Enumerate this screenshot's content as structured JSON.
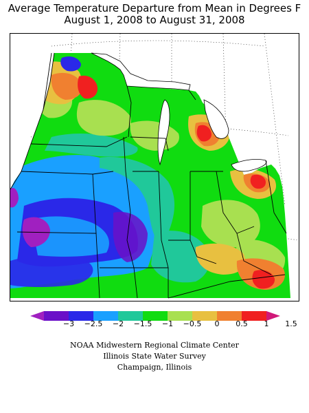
{
  "title": {
    "line1": "Average Temperature Departure from Mean in Degrees F",
    "line2": "August 1, 2008 to August 31, 2008"
  },
  "legend": {
    "ticks": [
      "−3",
      "−2.5",
      "−2",
      "−1.5",
      "−1",
      "−0.5",
      "0",
      "0.5",
      "1",
      "1.5"
    ],
    "colors": [
      "#a020c0",
      "#6a10c8",
      "#2a28e8",
      "#1aa0ff",
      "#20c89a",
      "#10dc10",
      "#a8e050",
      "#e8c040",
      "#f08030",
      "#f02020",
      "#d01878"
    ]
  },
  "credits": {
    "line1": "NOAA Midwestern Regional Climate Center",
    "line2": "Illinois State Water Survey",
    "line3": "Champaign, Illinois"
  }
}
